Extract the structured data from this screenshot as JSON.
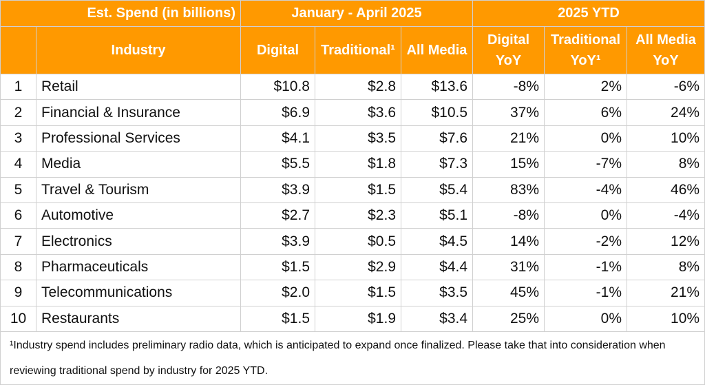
{
  "header": {
    "group_title": "Est. Spend (in billions)",
    "period": "January - April 2025",
    "ytd": "2025 YTD",
    "columns": {
      "industry": "Industry",
      "digital": "Digital",
      "traditional": "Traditional¹",
      "all_media": "All Media",
      "digital_yoy": [
        "Digital",
        "YoY"
      ],
      "traditional_yoy": [
        "Traditional",
        "YoY¹"
      ],
      "all_media_yoy": [
        "All Media",
        "YoY"
      ]
    }
  },
  "colors": {
    "header_bg": "#ff9900",
    "negative": "#990000",
    "positive": "#38761d"
  },
  "rows": [
    {
      "rank": "1",
      "industry": "Retail",
      "digital": "$10.8",
      "traditional": "$2.8",
      "all_media": "$13.6",
      "digital_yoy": "-8%",
      "traditional_yoy": "2%",
      "all_media_yoy": "-6%"
    },
    {
      "rank": "2",
      "industry": "Financial & Insurance",
      "digital": "$6.9",
      "traditional": "$3.6",
      "all_media": "$10.5",
      "digital_yoy": "37%",
      "traditional_yoy": "6%",
      "all_media_yoy": "24%"
    },
    {
      "rank": "3",
      "industry": "Professional Services",
      "digital": "$4.1",
      "traditional": "$3.5",
      "all_media": "$7.6",
      "digital_yoy": "21%",
      "traditional_yoy": "0%",
      "all_media_yoy": "10%"
    },
    {
      "rank": "4",
      "industry": "Media",
      "digital": "$5.5",
      "traditional": "$1.8",
      "all_media": "$7.3",
      "digital_yoy": "15%",
      "traditional_yoy": "-7%",
      "all_media_yoy": "8%"
    },
    {
      "rank": "5",
      "industry": "Travel & Tourism",
      "digital": "$3.9",
      "traditional": "$1.5",
      "all_media": "$5.4",
      "digital_yoy": "83%",
      "traditional_yoy": "-4%",
      "all_media_yoy": "46%"
    },
    {
      "rank": "6",
      "industry": "Automotive",
      "digital": "$2.7",
      "traditional": "$2.3",
      "all_media": "$5.1",
      "digital_yoy": "-8%",
      "traditional_yoy": "0%",
      "all_media_yoy": "-4%"
    },
    {
      "rank": "7",
      "industry": "Electronics",
      "digital": "$3.9",
      "traditional": "$0.5",
      "all_media": "$4.5",
      "digital_yoy": "14%",
      "traditional_yoy": "-2%",
      "all_media_yoy": "12%"
    },
    {
      "rank": "8",
      "industry": "Pharmaceuticals",
      "digital": "$1.5",
      "traditional": "$2.9",
      "all_media": "$4.4",
      "digital_yoy": "31%",
      "traditional_yoy": "-1%",
      "all_media_yoy": "8%"
    },
    {
      "rank": "9",
      "industry": "Telecommunications",
      "digital": "$2.0",
      "traditional": "$1.5",
      "all_media": "$3.5",
      "digital_yoy": "45%",
      "traditional_yoy": "-1%",
      "all_media_yoy": "21%"
    },
    {
      "rank": "10",
      "industry": "Restaurants",
      "digital": "$1.5",
      "traditional": "$1.9",
      "all_media": "$3.4",
      "digital_yoy": "25%",
      "traditional_yoy": "0%",
      "all_media_yoy": "10%"
    }
  ],
  "footnote": "¹Industry spend includes preliminary radio data, which is anticipated to expand once finalized. Please take that into consideration when reviewing traditional spend by industry for 2025 YTD."
}
